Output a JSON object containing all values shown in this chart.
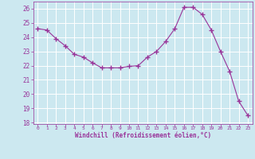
{
  "x": [
    0,
    1,
    2,
    3,
    4,
    5,
    6,
    7,
    8,
    9,
    10,
    11,
    12,
    13,
    14,
    15,
    16,
    17,
    18,
    19,
    20,
    21,
    22,
    23
  ],
  "y": [
    24.6,
    24.5,
    23.9,
    23.4,
    22.8,
    22.6,
    22.2,
    21.85,
    21.85,
    21.85,
    21.95,
    22.0,
    22.6,
    23.0,
    23.7,
    24.6,
    26.1,
    26.1,
    25.6,
    24.5,
    23.0,
    21.6,
    19.5,
    18.5
  ],
  "line_color": "#993399",
  "marker": "+",
  "marker_size": 4,
  "bg_color": "#cce8f0",
  "grid_color": "#ffffff",
  "xlabel": "Windchill (Refroidissement éolien,°C)",
  "tick_color": "#993399",
  "ylim_min": 18,
  "ylim_max": 27,
  "yticks": [
    18,
    19,
    20,
    21,
    22,
    23,
    24,
    25,
    26
  ],
  "xlim_min": -0.5,
  "xlim_max": 23.5,
  "xticks": [
    0,
    1,
    2,
    3,
    4,
    5,
    6,
    7,
    8,
    9,
    10,
    11,
    12,
    13,
    14,
    15,
    16,
    17,
    18,
    19,
    20,
    21,
    22,
    23
  ]
}
